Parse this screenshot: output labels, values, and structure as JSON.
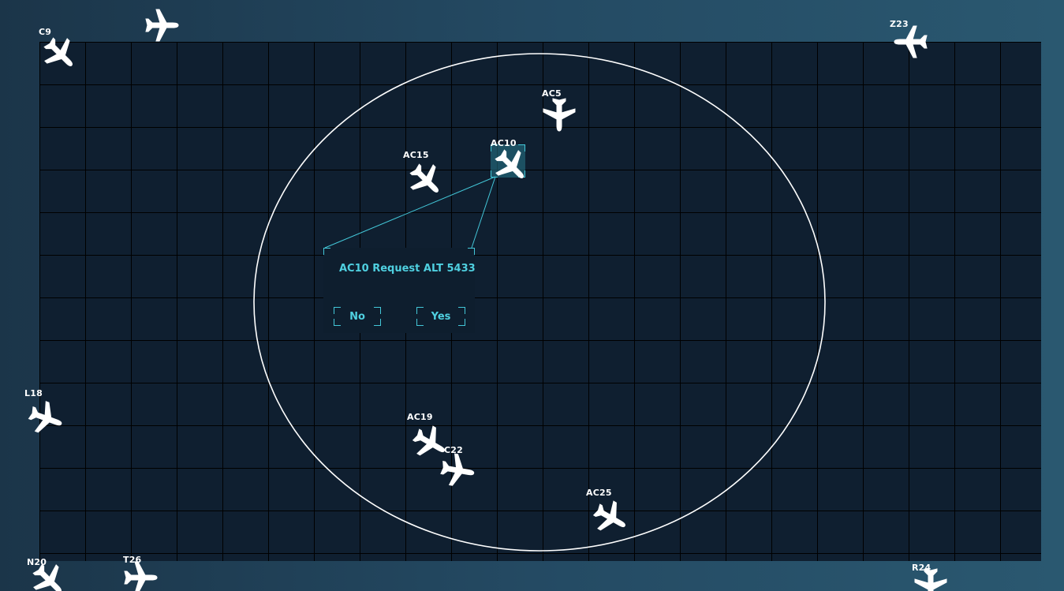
{
  "radar": {
    "range_ring_color": "#ffffff",
    "grid_color": "#000000",
    "background_color": "#0f1f30",
    "accent_color": "#43c7d8"
  },
  "aircraft": [
    {
      "id": "C9",
      "callsign": "C9",
      "icon": "airplane-icon"
    },
    {
      "id": "U_top",
      "callsign": "",
      "icon": "airplane-icon"
    },
    {
      "id": "Z23",
      "callsign": "Z23",
      "icon": "airplane-icon"
    },
    {
      "id": "AC5",
      "callsign": "AC5",
      "icon": "airplane-icon"
    },
    {
      "id": "AC10",
      "callsign": "AC10",
      "icon": "airplane-icon",
      "selected": true
    },
    {
      "id": "AC15",
      "callsign": "AC15",
      "icon": "airplane-icon"
    },
    {
      "id": "L18",
      "callsign": "L18",
      "icon": "airplane-icon"
    },
    {
      "id": "AC19",
      "callsign": "AC19",
      "icon": "airplane-icon"
    },
    {
      "id": "C22",
      "callsign": "C22",
      "icon": "airplane-icon"
    },
    {
      "id": "AC25",
      "callsign": "AC25",
      "icon": "airplane-icon"
    },
    {
      "id": "N20",
      "callsign": "N20",
      "icon": "airplane-icon"
    },
    {
      "id": "T26",
      "callsign": "T26",
      "icon": "airplane-icon"
    },
    {
      "id": "R24",
      "callsign": "R24",
      "icon": "airplane-icon"
    }
  ],
  "dialog": {
    "message": "AC10 Request ALT 5433",
    "no_label": "No",
    "yes_label": "Yes"
  }
}
